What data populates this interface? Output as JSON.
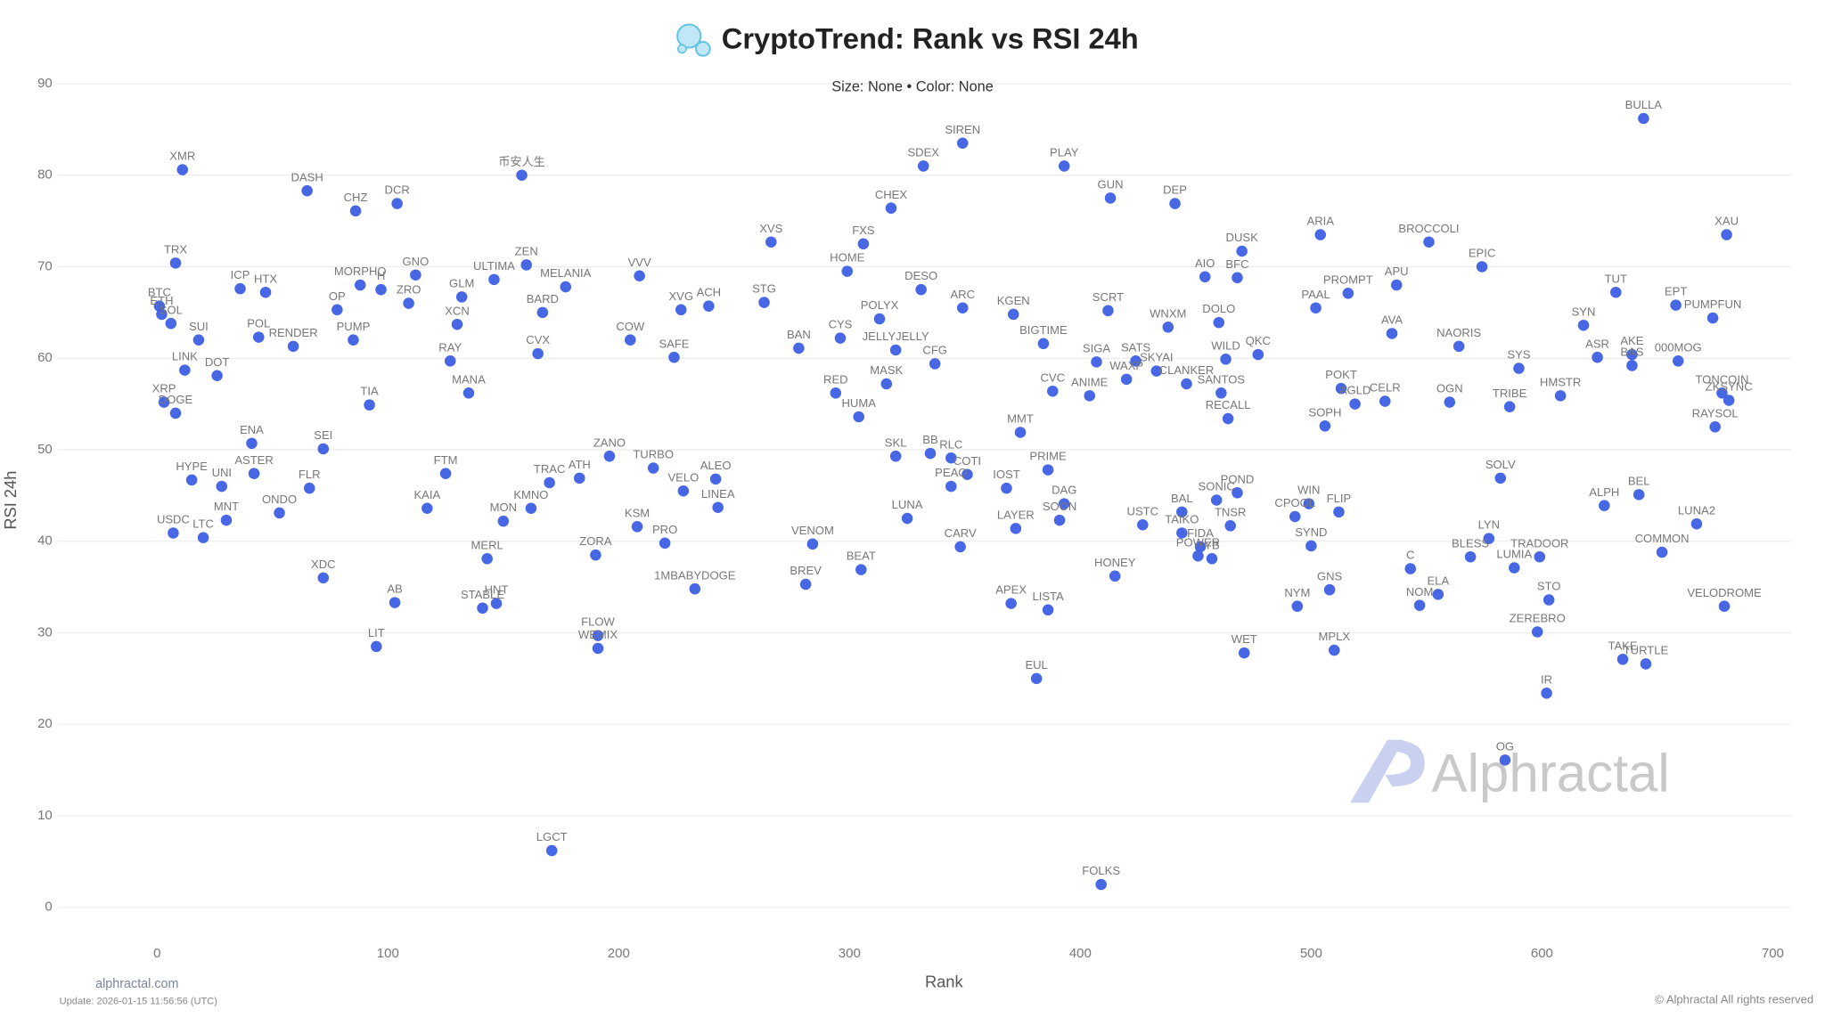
{
  "chart_data": {
    "type": "scatter",
    "title": "CryptoTrend: Rank vs RSI 24h",
    "subtitle": "Size: None • Color: None",
    "x_label": "Rank",
    "y_label": "RSI 24h",
    "watermark": "Alphractal",
    "footer_site": "alphractal.com",
    "footer_update": "Update: 2026-01-15 11:56:56 (UTC)",
    "footer_rights": "© Alphractal All rights reserved",
    "color": "#3d5fe3",
    "grid": true,
    "xlim": [
      -43,
      708
    ],
    "ylim": [
      -3,
      92
    ],
    "xticks": [
      0,
      100,
      200,
      300,
      400,
      500,
      600,
      700
    ],
    "yticks": [
      0,
      10,
      20,
      30,
      40,
      50,
      60,
      70,
      80,
      90
    ],
    "labels": [
      "BULLA",
      "XMR",
      "DASH",
      "CHZ",
      "DCR",
      "币安人生",
      "SIREN",
      "SDEX",
      "PLAY",
      "GUN",
      "DEP",
      "CHEX",
      "FXS",
      "XVS",
      "DUSK",
      "ARIA",
      "BROCCOLI",
      "XAU",
      "EPIC",
      "TRX",
      "ZEN",
      "HOME",
      "AIO",
      "BFC",
      "TUT",
      "DESO",
      "GNO",
      "MORPHO",
      "VVV",
      "APU",
      "PROMPT",
      "EPT",
      "PUMPFUN",
      "SCRT",
      "KGEN",
      "WNXM",
      "DOLO",
      "XVG",
      "BTC",
      "ETH",
      "SOL",
      "SYN",
      "BAN",
      "CYS",
      "POLYX",
      "SUI",
      "ZRO",
      "XCN",
      "GLM",
      "ACH",
      "STG",
      "COW",
      "SAFE",
      "RAY",
      "CFG",
      "BIGTIME",
      "SIGA",
      "SATS",
      "WILD",
      "QKC",
      "SYS",
      "ASR",
      "AKE",
      "000MOG",
      "TONCOIN",
      "VELODROME",
      "LGCT",
      "FOLKS",
      "OG",
      "IR",
      "EUL",
      "WET",
      "MPLX",
      "LIT",
      "WEMIX",
      "FLOW",
      "TAKE",
      "TURTLE",
      "AB",
      "XDC",
      "STABLE",
      "HNT",
      "1MBABYDOGE",
      "APEX",
      "LISTA",
      "HONEY",
      "BEAT",
      "BREV",
      "NYM",
      "GNS",
      "ELA",
      "NOM",
      "STO",
      "ZEREBRO",
      "C",
      "USDC",
      "LTC",
      "MNT",
      "ONDO",
      "MERL",
      "ZORA",
      "KSM",
      "PRO",
      "VENOM",
      "CARV",
      "LAYER",
      "SOON",
      "USTC",
      "TAIKO",
      "SYND",
      "LYN",
      "BLESS",
      "TRADOOR",
      "LUMIA",
      "LUNA2",
      "COMMON",
      "CPOOL",
      "LUNA",
      "SEI",
      "FLR",
      "HYPE",
      "UNI",
      "XRP",
      "LINK",
      "DOT",
      "DOGE",
      "SONIC",
      "BAL",
      "POND",
      "IOST",
      "DAG",
      "PRIME",
      "FLIP",
      "WIN",
      "SOLV",
      "BEL",
      "ALPH",
      "ULTIMA",
      "BARD",
      "MELANIA",
      "POL",
      "RENDER",
      "PUMP",
      "ICP",
      "HTX",
      "MANA",
      "CVX",
      "KAIA",
      "FTM",
      "TRAC",
      "MON",
      "KMNO",
      "ZANO",
      "VELO",
      "LINEA",
      "ATH",
      "ASTER",
      "OP",
      "JELLYJELLY",
      "WAXP",
      "SKYAI",
      "CLANKER",
      "SANTOS",
      "PAAL",
      "RED",
      "HUMA",
      "MASK",
      "SKL",
      "PEAQ",
      "COTI",
      "RLC",
      "BB",
      "MMT",
      "CVC",
      "ANIME",
      "TNSR",
      "FIDA",
      "POWER",
      "AVA",
      "NAORIS",
      "TRIBE",
      "OGN",
      "BAS",
      "HMSTR",
      "RAYSOL",
      "ZKSYNC",
      "ARC",
      "ENA",
      "TIA",
      "H",
      "CELR",
      "POKT",
      "SOPH",
      "AGLD",
      "RECALL",
      "ALEO",
      "TURBO",
      "YB"
    ],
    "x": [
      644,
      11,
      65,
      86,
      104,
      158,
      349,
      332,
      393,
      413,
      441,
      318,
      306,
      266,
      470,
      504,
      551,
      680,
      574,
      8,
      160,
      299,
      454,
      468,
      632,
      331,
      112,
      88,
      209,
      537,
      516,
      658,
      674,
      412,
      371,
      438,
      460,
      227,
      1,
      2,
      6,
      618,
      278,
      296,
      313,
      18,
      109,
      130,
      132,
      239,
      263,
      205,
      224,
      127,
      337,
      384,
      407,
      424,
      463,
      477,
      590,
      624,
      639,
      659,
      678,
      679,
      171,
      409,
      584,
      602,
      381,
      471,
      510,
      95,
      191,
      191,
      635,
      645,
      103,
      72,
      141,
      147,
      233,
      370,
      386,
      415,
      305,
      281,
      494,
      508,
      555,
      547,
      603,
      598,
      543,
      7,
      20,
      30,
      53,
      143,
      190,
      208,
      220,
      284,
      348,
      372,
      391,
      427,
      444,
      500,
      577,
      569,
      599,
      588,
      667,
      652,
      493,
      325,
      72,
      66,
      15,
      28,
      3,
      12,
      26,
      8,
      459,
      444,
      468,
      368,
      393,
      386,
      512,
      499,
      582,
      642,
      627,
      146,
      167,
      177,
      44,
      59,
      85,
      36,
      47,
      135,
      165,
      117,
      125,
      170,
      150,
      162,
      196,
      228,
      243,
      183,
      42,
      78,
      320,
      420,
      433,
      446,
      461,
      502,
      294,
      304,
      316,
      320,
      344,
      351,
      344,
      335,
      374,
      388,
      404,
      465,
      452,
      451,
      535,
      564,
      586,
      560,
      639,
      608,
      675,
      681,
      349,
      41,
      92,
      97,
      532,
      513,
      506,
      519,
      464,
      242,
      215,
      457
    ],
    "values": [
      86.2,
      80.6,
      78.3,
      76.1,
      76.9,
      80.0,
      83.5,
      81.0,
      81.0,
      77.5,
      76.9,
      76.4,
      72.5,
      72.7,
      71.7,
      73.5,
      72.7,
      73.5,
      70.0,
      70.4,
      70.2,
      69.5,
      68.9,
      68.8,
      67.2,
      67.5,
      69.1,
      68.0,
      69.0,
      68.0,
      67.1,
      65.8,
      64.4,
      65.2,
      64.8,
      63.4,
      63.9,
      65.3,
      65.7,
      64.8,
      63.8,
      63.6,
      61.1,
      62.2,
      64.3,
      62.0,
      66.0,
      63.7,
      66.7,
      65.7,
      66.1,
      62.0,
      60.1,
      59.7,
      59.4,
      61.6,
      59.6,
      59.7,
      59.9,
      60.4,
      58.9,
      60.1,
      60.4,
      59.7,
      56.2,
      32.9,
      6.2,
      2.5,
      16.1,
      23.4,
      25.0,
      27.8,
      28.1,
      28.5,
      28.3,
      29.7,
      27.1,
      26.6,
      33.3,
      36.0,
      32.7,
      33.2,
      34.8,
      33.2,
      32.5,
      36.2,
      36.9,
      35.3,
      32.9,
      34.7,
      34.2,
      33.0,
      33.6,
      30.1,
      37.0,
      40.9,
      40.4,
      42.3,
      43.1,
      38.1,
      38.5,
      41.6,
      39.8,
      39.7,
      39.4,
      41.4,
      42.3,
      41.8,
      40.9,
      39.5,
      40.3,
      38.3,
      38.3,
      37.1,
      41.9,
      38.8,
      42.7,
      42.5,
      50.1,
      45.8,
      46.7,
      46.0,
      55.2,
      58.7,
      58.1,
      54.0,
      44.5,
      43.2,
      45.3,
      45.8,
      44.1,
      47.8,
      43.2,
      44.1,
      46.9,
      45.1,
      43.9,
      68.6,
      65.0,
      67.8,
      62.3,
      61.3,
      62.0,
      67.6,
      67.2,
      56.2,
      60.5,
      43.6,
      47.4,
      46.4,
      42.2,
      43.6,
      49.3,
      45.5,
      43.7,
      46.9,
      47.4,
      65.3,
      60.9,
      57.7,
      58.6,
      57.2,
      56.2,
      65.5,
      56.2,
      53.6,
      57.2,
      49.3,
      46.0,
      47.3,
      49.1,
      49.6,
      51.9,
      56.4,
      55.9,
      41.7,
      39.4,
      38.4,
      62.7,
      61.3,
      54.7,
      55.2,
      59.2,
      55.9,
      52.5,
      55.4,
      65.5,
      50.7,
      54.9,
      67.5,
      55.3,
      56.7,
      52.6,
      55.0,
      53.4,
      46.8,
      48.0,
      38.1
    ]
  }
}
